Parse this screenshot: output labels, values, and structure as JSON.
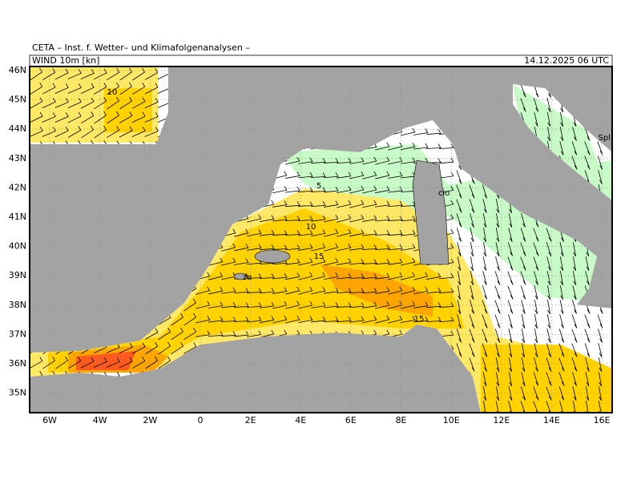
{
  "header": {
    "institute": "CETA – Inst. f. Wetter– und Klimafolgenanalysen –",
    "field": "WIND 10m [kn]",
    "valid_time": "14.12.2025 06 UTC"
  },
  "map": {
    "lat_labels": [
      "46N",
      "45N",
      "44N",
      "43N",
      "42N",
      "41N",
      "40N",
      "39N",
      "38N",
      "37N",
      "36N",
      "35N"
    ],
    "lon_labels": [
      "6W",
      "4W",
      "2W",
      "0",
      "2E",
      "4E",
      "6E",
      "8E",
      "10E",
      "12E",
      "14E",
      "16E"
    ],
    "contour_labels": [
      "10",
      "5",
      "10",
      "15",
      "15"
    ],
    "place_labels": [
      "Spl",
      "cio",
      "za"
    ]
  }
}
